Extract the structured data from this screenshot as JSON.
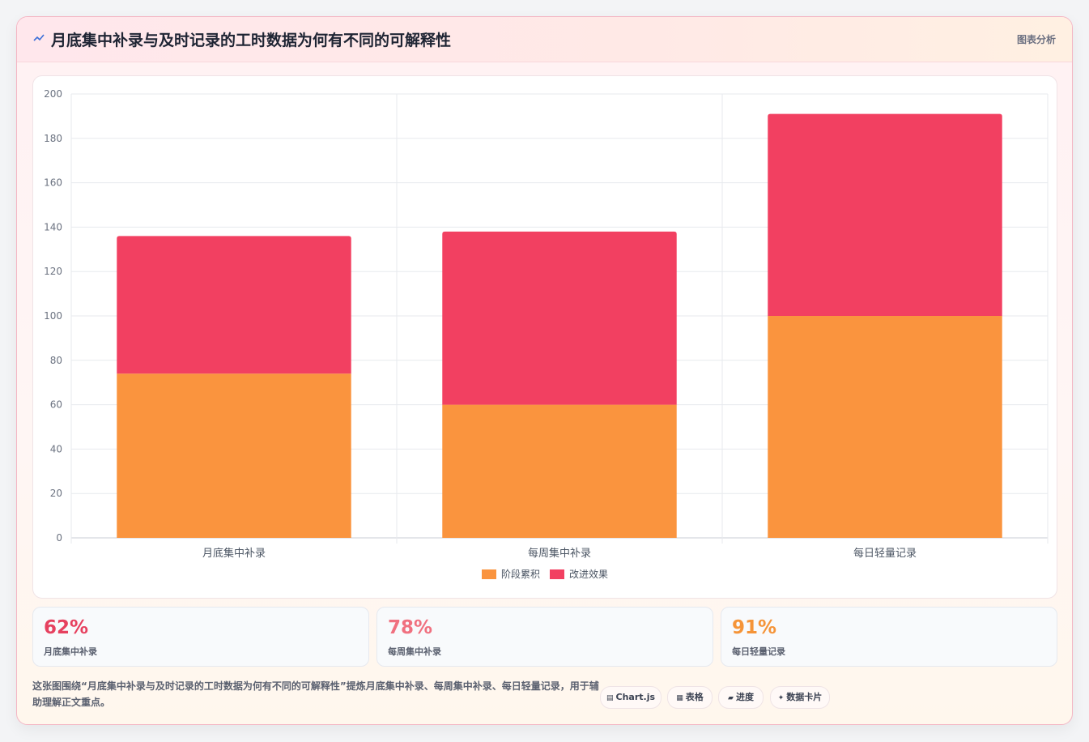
{
  "header": {
    "title": "月底集中补录与及时记录的工时数据为何有不同的可解释性",
    "tag": "图表分析"
  },
  "chart_data": {
    "type": "bar",
    "stacked": true,
    "categories": [
      "月底集中补录",
      "每周集中补录",
      "每日轻量记录"
    ],
    "series": [
      {
        "name": "阶段累积",
        "color": "#fa943e",
        "values": [
          74,
          60,
          100
        ]
      },
      {
        "name": "改进效果",
        "color": "#f24061",
        "values": [
          62,
          78,
          91
        ]
      }
    ],
    "ylim": [
      0,
      200
    ],
    "yticks": [
      0,
      20,
      40,
      60,
      80,
      100,
      120,
      140,
      160,
      180,
      200
    ],
    "grid": true,
    "legend": "bottom"
  },
  "stats": [
    {
      "value": "62%",
      "label": "月底集中补录",
      "color": "#e6415f"
    },
    {
      "value": "78%",
      "label": "每周集中补录",
      "color": "#f0707f"
    },
    {
      "value": "91%",
      "label": "每日轻量记录",
      "color": "#f59438"
    }
  ],
  "footer": {
    "text": "这张图围绕“月底集中补录与及时记录的工时数据为何有不同的可解释性”提炼月底集中补录、每周集中补录、每日轻量记录，用于辅助理解正文重点。",
    "pills": [
      {
        "icon": "▤",
        "icon_name": "chartjs-icon",
        "label": "Chart.js"
      },
      {
        "icon": "▦",
        "icon_name": "table-icon",
        "label": "表格"
      },
      {
        "icon": "▰",
        "icon_name": "progress-icon",
        "label": "进度"
      },
      {
        "icon": "✦",
        "icon_name": "data-card-icon",
        "label": "数据卡片"
      }
    ]
  }
}
